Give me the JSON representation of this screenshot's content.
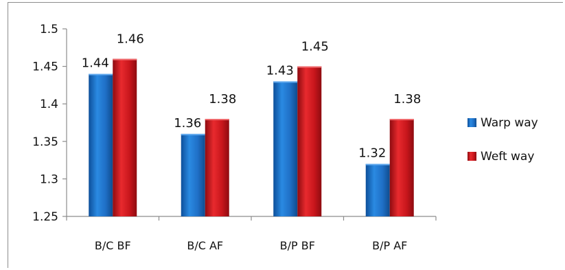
{
  "chart_data": {
    "type": "bar",
    "categories": [
      "B/C BF",
      "B/C AF",
      "B/P BF",
      "B/P AF"
    ],
    "series": [
      {
        "name": "Warp way",
        "values": [
          1.44,
          1.36,
          1.43,
          1.32
        ],
        "color": "#1f6fc6",
        "labels": [
          "1.44",
          "1.36",
          "1.43",
          "1.32"
        ]
      },
      {
        "name": "Weft way",
        "values": [
          1.46,
          1.38,
          1.45,
          1.38
        ],
        "color": "#c8161c",
        "labels": [
          "1.46",
          "1.38",
          "1.45",
          "1.38"
        ]
      }
    ],
    "yticks": [
      "1.25",
      "1.3",
      "1.35",
      "1.4",
      "1.45",
      "1.5"
    ],
    "ylim": [
      1.25,
      1.5
    ],
    "grid": false,
    "legend": "right"
  }
}
